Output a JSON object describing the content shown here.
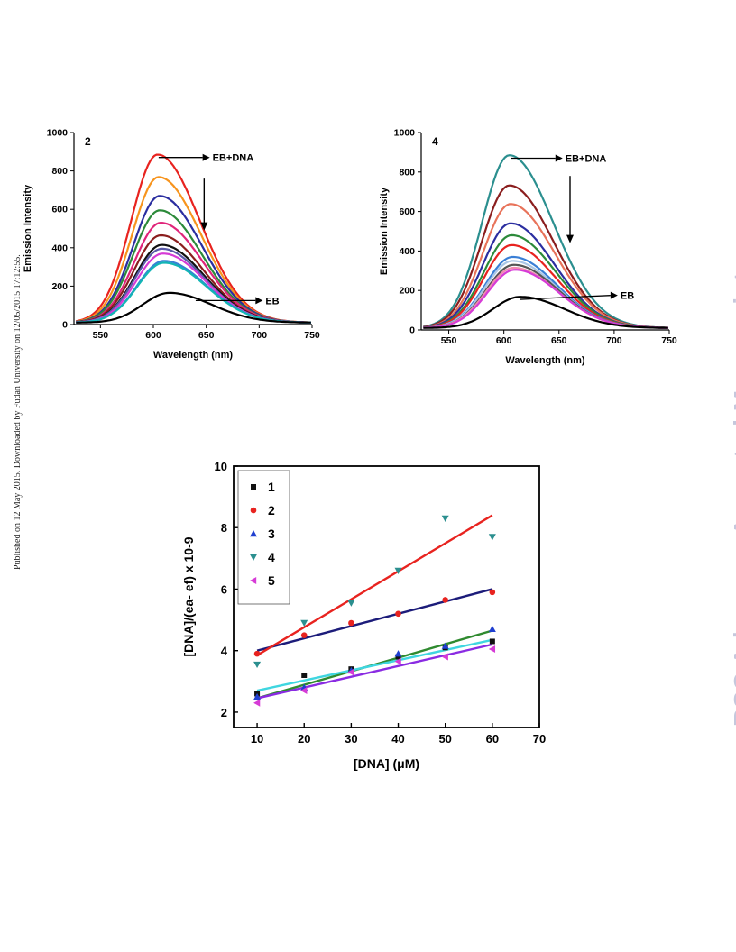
{
  "page": {
    "side_note": "Published on 12 May 2015. Downloaded by Fudan University on 12/05/2015 17:12:55.",
    "watermark": "RSC Advances Accepted Manuscript"
  },
  "chart_data": [
    {
      "type": "line",
      "panel_label": "2",
      "xlabel": "Wavelength (nm)",
      "ylabel": "Emission Intensity",
      "xlim": [
        525,
        750
      ],
      "ylim": [
        0,
        1000
      ],
      "xticks": [
        550,
        600,
        650,
        700,
        750
      ],
      "yticks": [
        0,
        200,
        400,
        600,
        800,
        1000
      ],
      "annotations": [
        {
          "text": "EB+DNA",
          "x": 650,
          "y": 870,
          "arrow_from": [
            605,
            870
          ]
        },
        {
          "text": "EB",
          "x": 700,
          "y": 125,
          "arrow_from": [
            640,
            125
          ]
        }
      ],
      "trend_arrow": {
        "x": 648,
        "from_y": 760,
        "to_y": 490
      },
      "series": [
        {
          "color": "#e8231f",
          "peak_x": 604,
          "peak_y": 875
        },
        {
          "color": "#f7941d",
          "peak_x": 605,
          "peak_y": 758
        },
        {
          "color": "#2b2ea0",
          "peak_x": 606,
          "peak_y": 660
        },
        {
          "color": "#2c8a3a",
          "peak_x": 606,
          "peak_y": 585
        },
        {
          "color": "#e0257a",
          "peak_x": 607,
          "peak_y": 520
        },
        {
          "color": "#8b1e1e",
          "peak_x": 607,
          "peak_y": 455
        },
        {
          "color": "#111111",
          "peak_x": 608,
          "peak_y": 405
        },
        {
          "color": "#5a5aa8",
          "peak_x": 608,
          "peak_y": 385
        },
        {
          "color": "#d63bd6",
          "peak_x": 609,
          "peak_y": 360
        },
        {
          "color": "#3a7fd6",
          "peak_x": 610,
          "peak_y": 322
        },
        {
          "color": "#13b5b5",
          "peak_x": 610,
          "peak_y": 312
        },
        {
          "color": "#000000",
          "peak_x": 615,
          "peak_y": 155
        }
      ]
    },
    {
      "type": "line",
      "panel_label": "4",
      "xlabel": "Wavelength (nm)",
      "ylabel": "Emission Intensity",
      "xlim": [
        525,
        750
      ],
      "ylim": [
        0,
        1000
      ],
      "xticks": [
        550,
        600,
        650,
        700,
        750
      ],
      "yticks": [
        0,
        200,
        400,
        600,
        800,
        1000
      ],
      "annotations": [
        {
          "text": "EB+DNA",
          "x": 650,
          "y": 870,
          "arrow_from": [
            606,
            870
          ]
        },
        {
          "text": "EB",
          "x": 700,
          "y": 175,
          "arrow_from": [
            615,
            155
          ]
        }
      ],
      "trend_arrow": {
        "x": 660,
        "from_y": 780,
        "to_y": 440
      },
      "series": [
        {
          "color": "#2b8f8f",
          "peak_x": 605,
          "peak_y": 875
        },
        {
          "color": "#8b1e1e",
          "peak_x": 605,
          "peak_y": 722
        },
        {
          "color": "#e8735a",
          "peak_x": 606,
          "peak_y": 628
        },
        {
          "color": "#2b2ea0",
          "peak_x": 606,
          "peak_y": 530
        },
        {
          "color": "#2c8a3a",
          "peak_x": 607,
          "peak_y": 470
        },
        {
          "color": "#e8231f",
          "peak_x": 607,
          "peak_y": 420
        },
        {
          "color": "#3a7fd6",
          "peak_x": 608,
          "peak_y": 360
        },
        {
          "color": "#aac6e6",
          "peak_x": 608,
          "peak_y": 340
        },
        {
          "color": "#555555",
          "peak_x": 609,
          "peak_y": 320
        },
        {
          "color": "#f08ab0",
          "peak_x": 609,
          "peak_y": 305
        },
        {
          "color": "#d63bd6",
          "peak_x": 610,
          "peak_y": 295
        },
        {
          "color": "#000000",
          "peak_x": 615,
          "peak_y": 158
        }
      ]
    },
    {
      "type": "scatter",
      "xlabel": "[DNA] (μM)",
      "ylabel": "[DNA]/(ea- ef) x 10-9",
      "xlim": [
        5,
        70
      ],
      "ylim": [
        1.5,
        10
      ],
      "xticks": [
        10,
        20,
        30,
        40,
        50,
        60,
        70
      ],
      "yticks": [
        2,
        4,
        6,
        8,
        10
      ],
      "legend_position": "top-left",
      "x": [
        10,
        20,
        30,
        40,
        50,
        60
      ],
      "series": [
        {
          "name": "1",
          "marker": "square",
          "color": "#111111",
          "values": [
            2.6,
            3.2,
            3.4,
            3.8,
            4.1,
            4.3
          ],
          "fit": [
            2.45,
            4.65
          ],
          "fit_color": "#2f8a2f"
        },
        {
          "name": "2",
          "marker": "circle",
          "color": "#e8231f",
          "values": [
            3.9,
            4.5,
            4.9,
            5.2,
            5.65,
            5.9
          ],
          "fit": [
            4.0,
            6.0
          ],
          "fit_color": "#1c1c7a"
        },
        {
          "name": "3",
          "marker": "triangle-up",
          "color": "#1f3fd0",
          "values": [
            2.5,
            2.8,
            3.35,
            3.9,
            4.15,
            4.7
          ],
          "fit": [
            2.7,
            4.35
          ],
          "fit_color": "#3fd6e0"
        },
        {
          "name": "4",
          "marker": "triangle-down",
          "color": "#2b8f8f",
          "values": [
            3.55,
            4.9,
            5.55,
            6.6,
            8.3,
            7.7
          ],
          "fit": [
            3.85,
            8.4
          ],
          "fit_color": "#e8231f"
        },
        {
          "name": "5",
          "marker": "triangle-left",
          "color": "#d63bd6",
          "values": [
            2.3,
            2.7,
            3.3,
            3.65,
            3.8,
            4.05
          ],
          "fit": [
            2.45,
            4.2
          ],
          "fit_color": "#8a2be2"
        }
      ]
    }
  ]
}
